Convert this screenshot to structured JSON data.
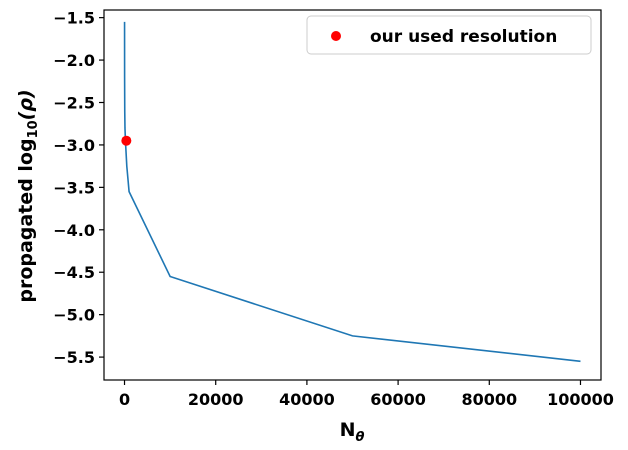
{
  "chart_data": {
    "type": "line",
    "xlabel": "N",
    "xlabel_subscript": "θ",
    "ylabel_prefix": "propagated log",
    "ylabel_subscript": "10",
    "ylabel_suffix": "(ρ)",
    "xlim": [
      -4500,
      104500
    ],
    "ylim": [
      -5.77,
      -1.41
    ],
    "xticks": [
      0,
      20000,
      40000,
      60000,
      80000,
      100000
    ],
    "xtick_labels": [
      "0",
      "20000",
      "40000",
      "60000",
      "80000",
      "100000"
    ],
    "yticks": [
      -1.5,
      -2.0,
      -2.5,
      -3.0,
      -3.5,
      -4.0,
      -4.5,
      -5.0,
      -5.5
    ],
    "ytick_labels": [
      "−1.5",
      "−2.0",
      "−2.5",
      "−3.0",
      "−3.5",
      "−4.0",
      "−4.5",
      "−5.0",
      "−5.5"
    ],
    "grid": false,
    "legend": {
      "placement": "top-right",
      "entries": [
        "our used resolution"
      ]
    },
    "series": [
      {
        "kind": "line",
        "color": "#1f77b4",
        "x": [
          10,
          20,
          50,
          100,
          200,
          500,
          1000,
          10000,
          50000,
          100000
        ],
        "y": [
          -1.55,
          -2.2,
          -2.6,
          -2.8,
          -2.95,
          -3.25,
          -3.55,
          -4.55,
          -5.25,
          -5.55
        ]
      },
      {
        "name": "our used resolution",
        "kind": "scatter",
        "color": "#ff0000",
        "x": [
          400
        ],
        "y": [
          -2.95
        ]
      }
    ]
  }
}
